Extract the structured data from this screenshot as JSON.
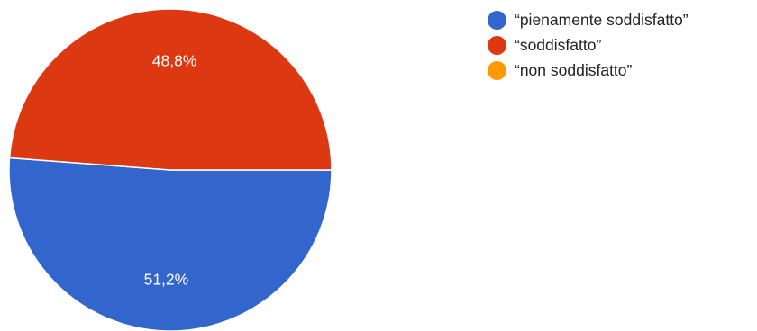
{
  "chart_data": {
    "type": "pie",
    "categories": [
      "“pienamente soddisfatto”",
      "“soddisfatto”",
      "“non soddisfatto”"
    ],
    "values": [
      51.2,
      48.8,
      0
    ],
    "data_labels": [
      "51,2%",
      "48,8%",
      ""
    ],
    "colors": [
      "#3366CC",
      "#DC3912",
      "#FF9900"
    ],
    "legend_position": "right"
  }
}
